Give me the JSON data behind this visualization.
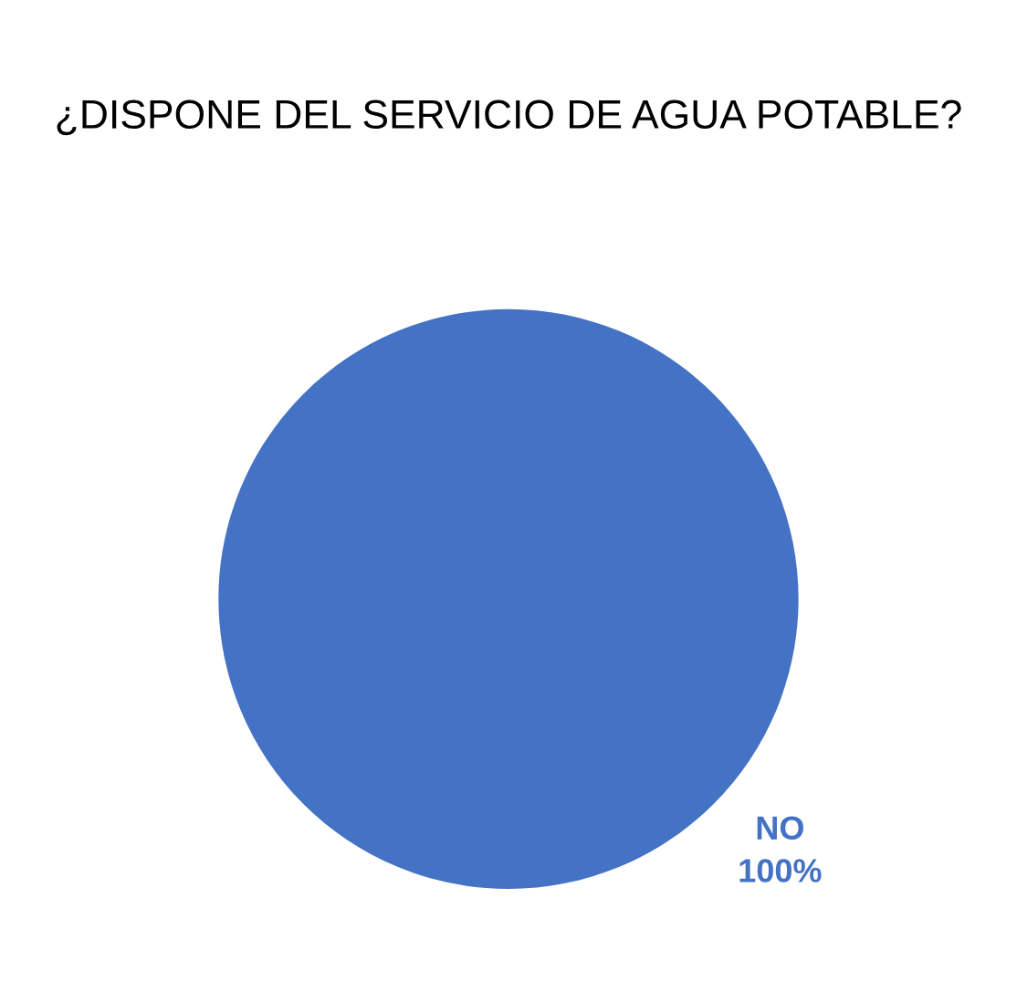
{
  "chart_data": {
    "type": "pie",
    "title": "¿DISPONE DEL SERVICIO DE AGUA POTABLE?",
    "categories": [
      "NO"
    ],
    "values": [
      100
    ],
    "value_labels": [
      "100%"
    ],
    "colors": [
      "#4472c4"
    ]
  }
}
